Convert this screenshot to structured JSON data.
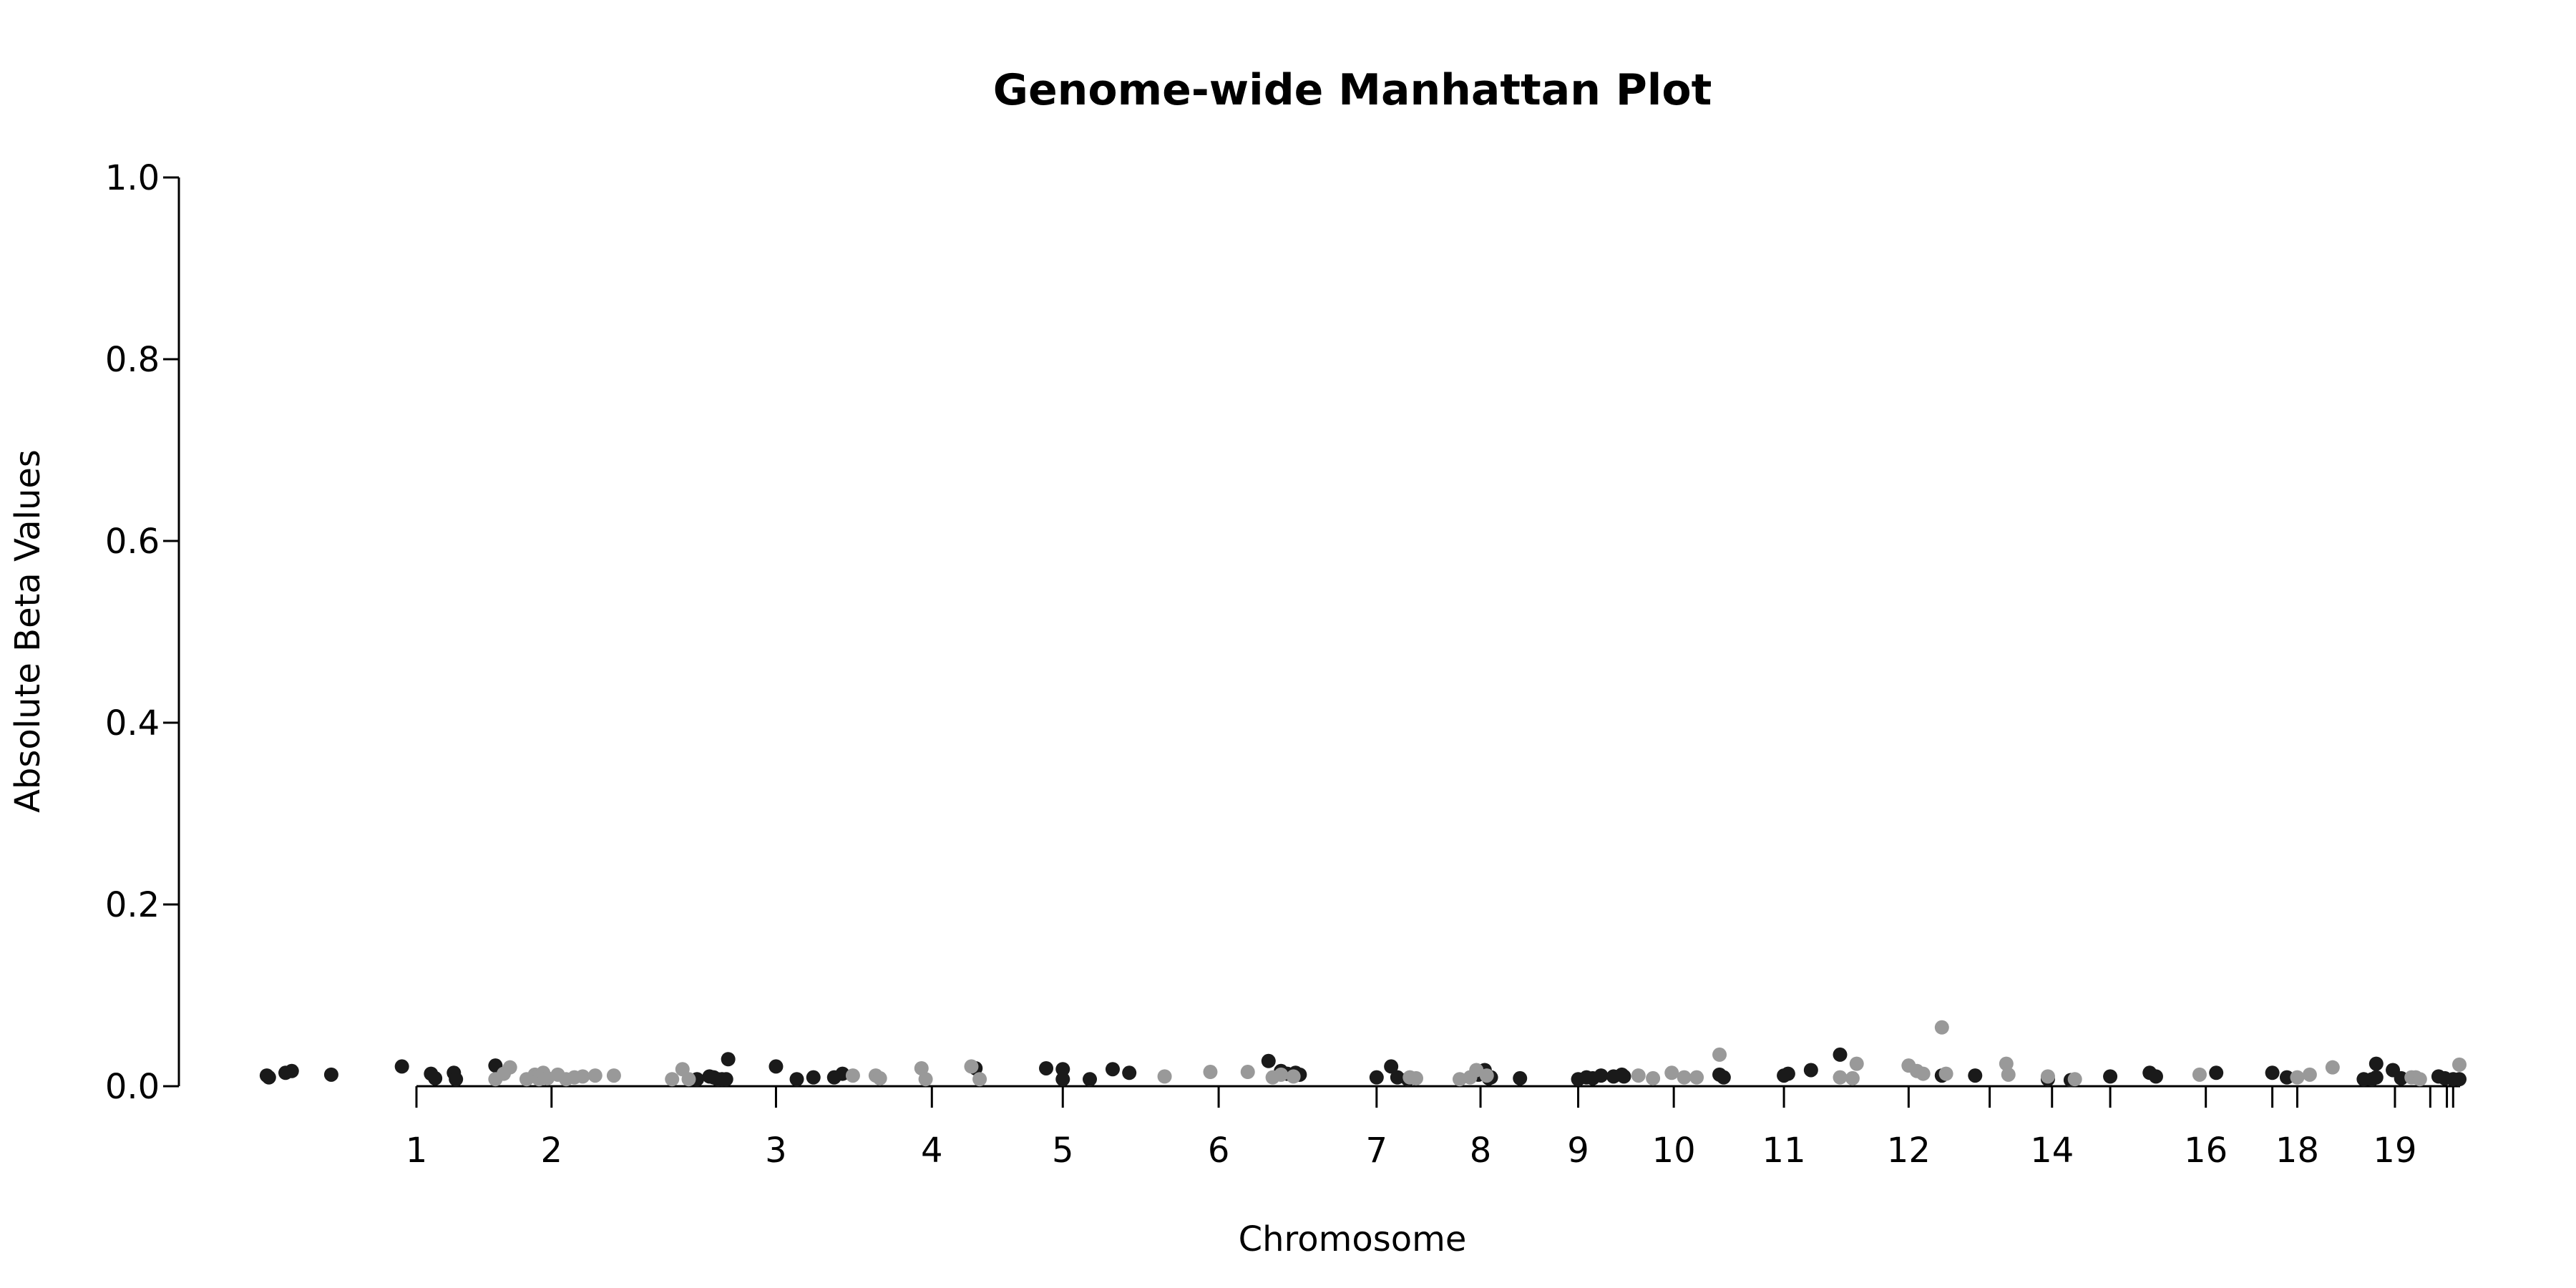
{
  "chart_data": {
    "type": "scatter",
    "title": "Genome-wide Manhattan Plot",
    "xlabel": "Chromosome",
    "ylabel": "Absolute Beta Values",
    "ylim": [
      0,
      1.0
    ],
    "yticks": [
      {
        "value": 0.0,
        "label": "0.0"
      },
      {
        "value": 0.2,
        "label": "0.2"
      },
      {
        "value": 0.4,
        "label": "0.4"
      },
      {
        "value": 0.6,
        "label": "0.6"
      },
      {
        "value": 0.8,
        "label": "0.8"
      },
      {
        "value": 1.0,
        "label": "1.0"
      }
    ],
    "xlim": [
      -9,
      114
    ],
    "chromosome_ticks": [
      {
        "pos": 0.0,
        "label": "1"
      },
      {
        "pos": 6.5,
        "label": "2"
      },
      {
        "pos": 17.3,
        "label": "3"
      },
      {
        "pos": 24.8,
        "label": "4"
      },
      {
        "pos": 31.1,
        "label": "5"
      },
      {
        "pos": 38.6,
        "label": "6"
      },
      {
        "pos": 46.2,
        "label": "7"
      },
      {
        "pos": 51.2,
        "label": "8"
      },
      {
        "pos": 55.9,
        "label": "9"
      },
      {
        "pos": 60.5,
        "label": "10"
      },
      {
        "pos": 65.8,
        "label": "11"
      },
      {
        "pos": 71.8,
        "label": "12"
      },
      {
        "pos": 75.7,
        "label": ""
      },
      {
        "pos": 78.7,
        "label": "14"
      },
      {
        "pos": 81.5,
        "label": ""
      },
      {
        "pos": 86.1,
        "label": "16"
      },
      {
        "pos": 89.3,
        "label": ""
      },
      {
        "pos": 90.5,
        "label": "18"
      },
      {
        "pos": 95.2,
        "label": "19"
      },
      {
        "pos": 96.9,
        "label": ""
      },
      {
        "pos": 97.7,
        "label": ""
      },
      {
        "pos": 98.0,
        "label": ""
      }
    ],
    "grid": false,
    "colors": {
      "dark": "#1a1a1a",
      "light": "#999999"
    },
    "series": [
      {
        "color": "dark",
        "points": [
          [
            -7.2,
            0.007
          ],
          [
            -7.1,
            0.005
          ],
          [
            -6.3,
            0.01
          ],
          [
            -6.0,
            0.012
          ],
          [
            -4.1,
            0.008
          ],
          [
            -0.7,
            0.017
          ],
          [
            0.7,
            0.009
          ],
          [
            0.9,
            0.004
          ],
          [
            1.8,
            0.01
          ],
          [
            1.9,
            0.003
          ],
          [
            3.8,
            0.018
          ],
          [
            13.5,
            0.003
          ],
          [
            14.1,
            0.006
          ],
          [
            14.3,
            0.005
          ],
          [
            14.5,
            0.003
          ],
          [
            14.7,
            0.003
          ],
          [
            14.9,
            0.003
          ],
          [
            15.0,
            0.025
          ],
          [
            17.3,
            0.017
          ],
          [
            18.3,
            0.003
          ],
          [
            19.1,
            0.005
          ],
          [
            20.1,
            0.005
          ],
          [
            20.5,
            0.009
          ],
          [
            26.9,
            0.015
          ],
          [
            30.3,
            0.015
          ],
          [
            31.1,
            0.014
          ],
          [
            31.1,
            0.003
          ],
          [
            32.4,
            0.003
          ],
          [
            33.5,
            0.014
          ],
          [
            34.3,
            0.01
          ],
          [
            41.0,
            0.023
          ],
          [
            41.6,
            0.012
          ],
          [
            41.9,
            0.009
          ],
          [
            42.3,
            0.01
          ],
          [
            42.5,
            0.008
          ],
          [
            46.2,
            0.005
          ],
          [
            46.9,
            0.017
          ],
          [
            47.2,
            0.005
          ],
          [
            47.7,
            0.003
          ],
          [
            51.1,
            0.008
          ],
          [
            51.4,
            0.013
          ],
          [
            51.6,
            0.004
          ],
          [
            51.7,
            0.005
          ],
          [
            53.1,
            0.004
          ],
          [
            55.9,
            0.003
          ],
          [
            56.3,
            0.005
          ],
          [
            56.6,
            0.004
          ],
          [
            57.0,
            0.007
          ],
          [
            57.6,
            0.006
          ],
          [
            58.0,
            0.008
          ],
          [
            58.1,
            0.006
          ],
          [
            62.7,
            0.008
          ],
          [
            62.9,
            0.005
          ],
          [
            65.8,
            0.007
          ],
          [
            66.0,
            0.009
          ],
          [
            67.1,
            0.013
          ],
          [
            68.5,
            0.03
          ],
          [
            73.4,
            0.007
          ],
          [
            75.0,
            0.007
          ],
          [
            78.5,
            0.003
          ],
          [
            79.6,
            0.002
          ],
          [
            81.5,
            0.006
          ],
          [
            83.4,
            0.01
          ],
          [
            83.7,
            0.006
          ],
          [
            86.6,
            0.01
          ],
          [
            89.3,
            0.01
          ],
          [
            90.0,
            0.005
          ],
          [
            93.7,
            0.003
          ],
          [
            94.1,
            0.003
          ],
          [
            94.3,
            0.02
          ],
          [
            94.3,
            0.005
          ],
          [
            95.1,
            0.013
          ],
          [
            95.5,
            0.004
          ],
          [
            97.3,
            0.006
          ],
          [
            97.6,
            0.004
          ],
          [
            98.0,
            0.003
          ],
          [
            98.3,
            0.003
          ]
        ]
      },
      {
        "color": "light",
        "points": [
          [
            3.8,
            0.003
          ],
          [
            4.2,
            0.009
          ],
          [
            4.5,
            0.016
          ],
          [
            5.3,
            0.003
          ],
          [
            5.7,
            0.008
          ],
          [
            5.8,
            0.005
          ],
          [
            5.9,
            0.003
          ],
          [
            6.1,
            0.01
          ],
          [
            6.3,
            0.004
          ],
          [
            6.8,
            0.008
          ],
          [
            7.2,
            0.003
          ],
          [
            7.6,
            0.005
          ],
          [
            8.0,
            0.006
          ],
          [
            8.6,
            0.007
          ],
          [
            9.5,
            0.007
          ],
          [
            12.3,
            0.003
          ],
          [
            12.8,
            0.014
          ],
          [
            13.1,
            0.003
          ],
          [
            21.0,
            0.007
          ],
          [
            22.1,
            0.007
          ],
          [
            22.3,
            0.004
          ],
          [
            24.3,
            0.015
          ],
          [
            24.5,
            0.003
          ],
          [
            26.7,
            0.017
          ],
          [
            27.1,
            0.003
          ],
          [
            36.0,
            0.006
          ],
          [
            38.2,
            0.011
          ],
          [
            40.0,
            0.011
          ],
          [
            41.2,
            0.005
          ],
          [
            41.6,
            0.008
          ],
          [
            42.2,
            0.006
          ],
          [
            47.8,
            0.005
          ],
          [
            48.1,
            0.004
          ],
          [
            50.2,
            0.003
          ],
          [
            50.7,
            0.005
          ],
          [
            51.0,
            0.013
          ],
          [
            51.5,
            0.007
          ],
          [
            58.8,
            0.007
          ],
          [
            59.5,
            0.004
          ],
          [
            60.4,
            0.01
          ],
          [
            61.0,
            0.005
          ],
          [
            61.6,
            0.005
          ],
          [
            62.7,
            0.03
          ],
          [
            68.5,
            0.005
          ],
          [
            69.1,
            0.004
          ],
          [
            69.3,
            0.02
          ],
          [
            71.8,
            0.018
          ],
          [
            72.2,
            0.012
          ],
          [
            72.5,
            0.009
          ],
          [
            73.4,
            0.06
          ],
          [
            73.6,
            0.009
          ],
          [
            76.5,
            0.02
          ],
          [
            76.6,
            0.008
          ],
          [
            78.5,
            0.006
          ],
          [
            79.8,
            0.003
          ],
          [
            85.8,
            0.008
          ],
          [
            90.5,
            0.005
          ],
          [
            91.1,
            0.008
          ],
          [
            92.2,
            0.016
          ],
          [
            96.0,
            0.005
          ],
          [
            96.2,
            0.005
          ],
          [
            96.4,
            0.003
          ],
          [
            98.3,
            0.019
          ]
        ]
      }
    ]
  }
}
